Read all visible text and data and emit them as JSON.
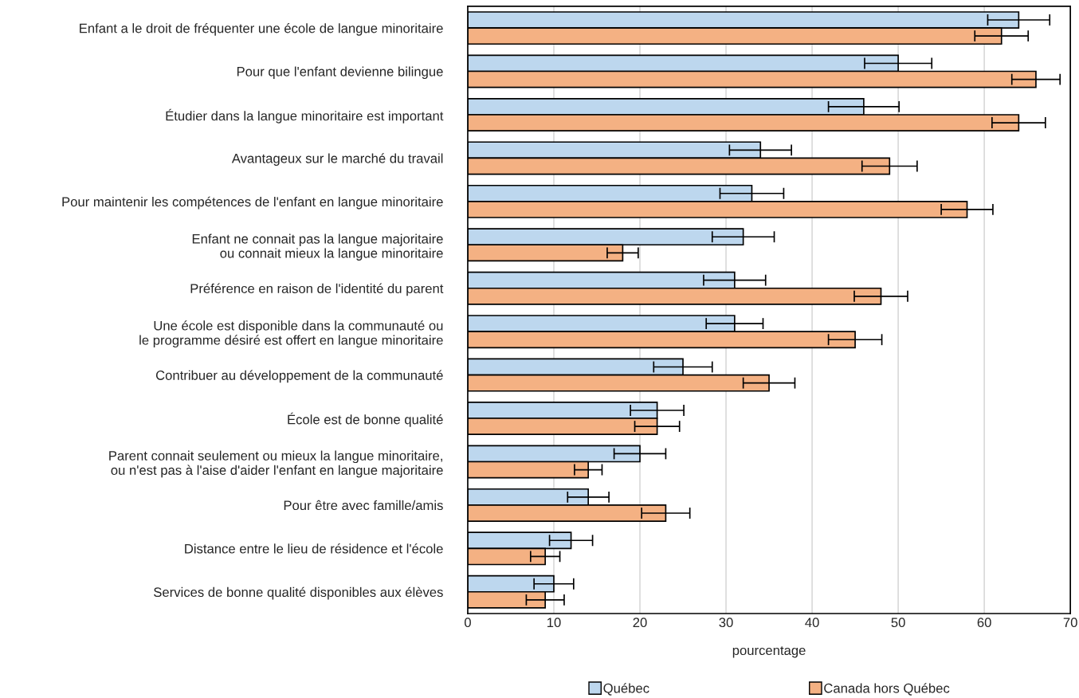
{
  "chart_data": {
    "type": "bar",
    "orientation": "horizontal",
    "xlabel": "pourcentage",
    "categories": [
      "Enfant a le droit de fréquenter une école de langue minoritaire",
      "Pour que l'enfant devienne bilingue",
      "Étudier dans la langue minoritaire est important",
      "Avantageux sur le marché du travail",
      "Pour maintenir les compétences de l'enfant en langue minoritaire",
      "Enfant ne connait pas la langue majoritaire\nou connait mieux la langue minoritaire",
      "Préférence en raison de l'identité du parent",
      "Une école est disponible dans la communauté ou\nle programme désiré est offert en langue minoritaire",
      "Contribuer au développement de la communauté",
      "École est de bonne qualité",
      "Parent connait seulement ou mieux la langue minoritaire,\nou n'est pas à l'aise d'aider l'enfant en langue majoritaire",
      "Pour être avec famille/amis",
      "Distance entre le lieu de résidence et l'école",
      "Services de bonne qualité disponibles aux élèves"
    ],
    "series": [
      {
        "name": "Québec",
        "color": "#bdd7ee",
        "values": [
          64,
          50,
          46,
          34,
          33,
          32,
          31,
          31,
          25,
          22,
          20,
          14,
          12,
          10
        ],
        "errors": [
          3.6,
          3.9,
          4.1,
          3.6,
          3.7,
          3.6,
          3.6,
          3.3,
          3.4,
          3.1,
          3.0,
          2.4,
          2.5,
          2.3
        ]
      },
      {
        "name": "Canada hors Québec",
        "color": "#f4b183",
        "values": [
          62,
          66,
          64,
          49,
          58,
          18,
          48,
          45,
          35,
          22,
          14,
          23,
          9,
          9
        ],
        "errors": [
          3.1,
          2.8,
          3.1,
          3.2,
          3.0,
          1.8,
          3.1,
          3.1,
          3.0,
          2.6,
          1.6,
          2.8,
          1.7,
          2.2
        ]
      }
    ],
    "xlim": [
      0,
      70
    ],
    "xticks": [
      0,
      10,
      20,
      30,
      40,
      50,
      60,
      70
    ],
    "grid": "x",
    "legend": "bottom"
  }
}
